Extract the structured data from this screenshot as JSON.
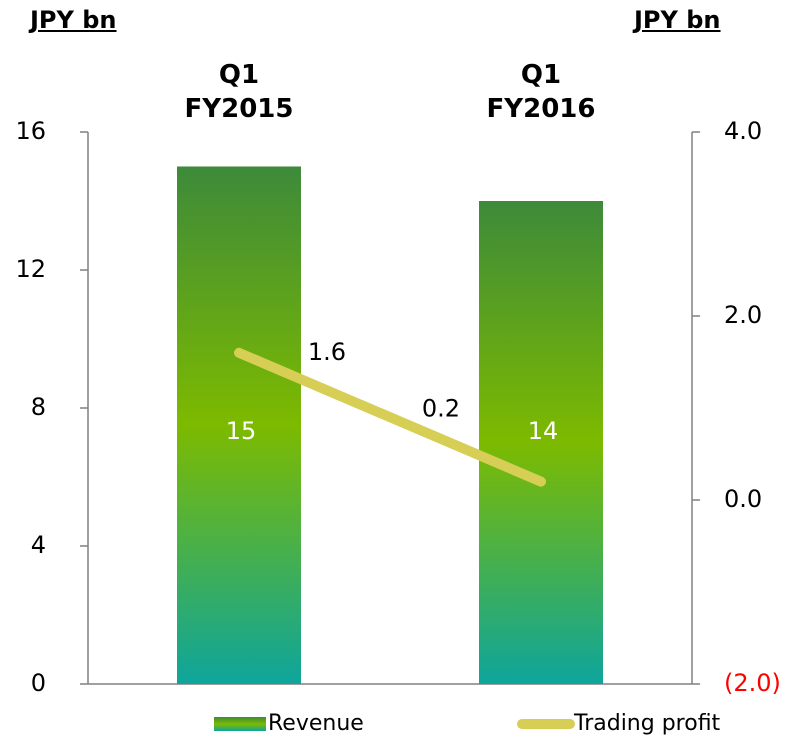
{
  "chart_data": {
    "type": "bar_line",
    "y_label": "JPY bn",
    "y2_label": "JPY bn",
    "categories": [
      "Q1\nFY2015",
      "Q1\nFY2016"
    ],
    "series": [
      {
        "name": "Revenue",
        "type": "bar",
        "color": [
          "#3d8a3a",
          "#7dba00",
          "#0ea59c"
        ],
        "values": [
          15,
          14
        ]
      },
      {
        "name": "Trading profit",
        "type": "line",
        "axis": "y2",
        "color": "#d6ce55",
        "values": [
          1.6,
          0.2
        ]
      }
    ],
    "ylim": [
      0,
      16
    ],
    "yticks": [
      0,
      4,
      8,
      12,
      16
    ],
    "y2lim": [
      -2,
      4
    ],
    "y2ticks": [
      {
        "value": 4,
        "label": "4.0"
      },
      {
        "value": 2,
        "label": "2.0"
      },
      {
        "value": 0,
        "label": "0.0"
      },
      {
        "value": -2,
        "label": "(2.0)"
      }
    ],
    "negative_tick_color": "#ff0000",
    "bar_label_color": "#ffffff",
    "legend": "bottom"
  }
}
